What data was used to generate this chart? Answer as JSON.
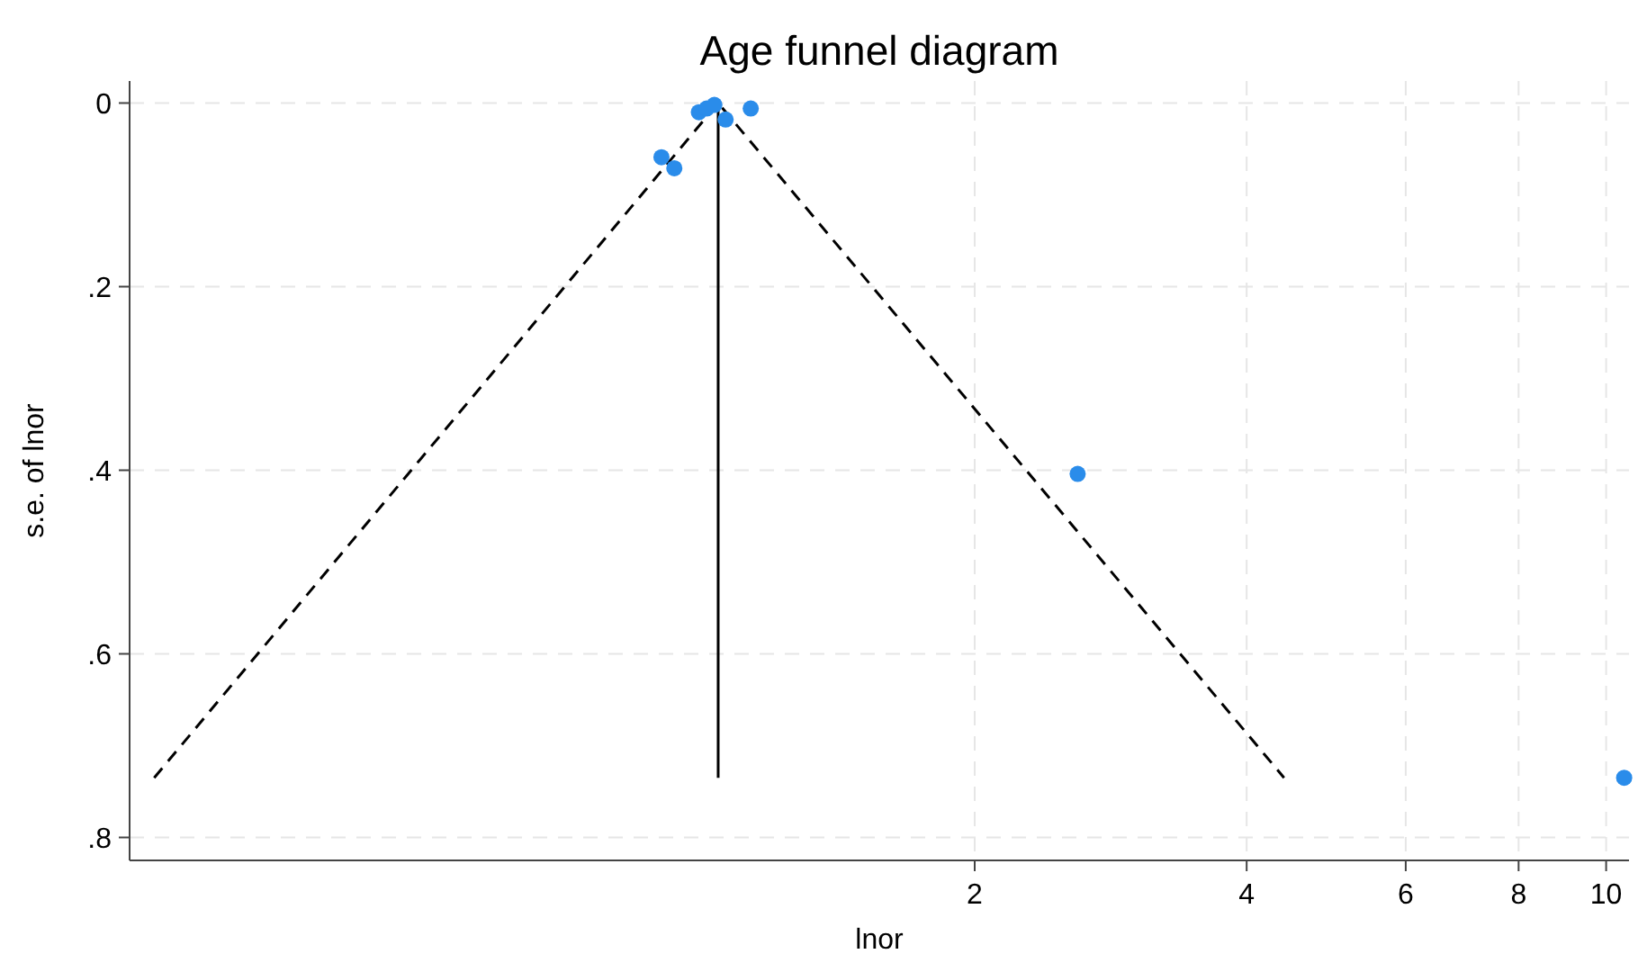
{
  "chart_data": {
    "type": "scatter",
    "title": "Age funnel diagram",
    "xlabel": "lnor",
    "ylabel": "s.e. of lnor",
    "log": "x",
    "xlim": [
      0.232,
      10.6
    ],
    "xticks": [
      2,
      4,
      6,
      8,
      10
    ],
    "ylim": [
      0.825,
      -0.024
    ],
    "yticks": [
      {
        "value": 0,
        "label": "0"
      },
      {
        "value": 0.2,
        "label": ".2"
      },
      {
        "value": 0.4,
        "label": ".4"
      },
      {
        "value": 0.6,
        "label": ".6"
      },
      {
        "value": 0.8,
        "label": ".8"
      }
    ],
    "grid": true,
    "series": [
      {
        "type": "line",
        "color": "#000000",
        "line_style": "dashed",
        "marker": "none",
        "x": [
          0.247,
          1.04,
          4.4
        ],
        "values": [
          0.735,
          0,
          0.735
        ]
      },
      {
        "type": "line",
        "color": "#000000",
        "line_style": "solid",
        "marker": "none",
        "x": [
          1.04,
          1.04
        ],
        "values": [
          0,
          0.735
        ]
      },
      {
        "color": "#2a8cea",
        "marker": "circle",
        "x": [
          0.99,
          1.01,
          1.03,
          1.05,
          1.06,
          1.13,
          0.9,
          0.93,
          2.6,
          10.47
        ],
        "values": [
          0.01,
          0.006,
          0.002,
          null,
          0.018,
          0.006,
          0.059,
          0.071,
          0.404,
          0.735
        ]
      }
    ]
  }
}
